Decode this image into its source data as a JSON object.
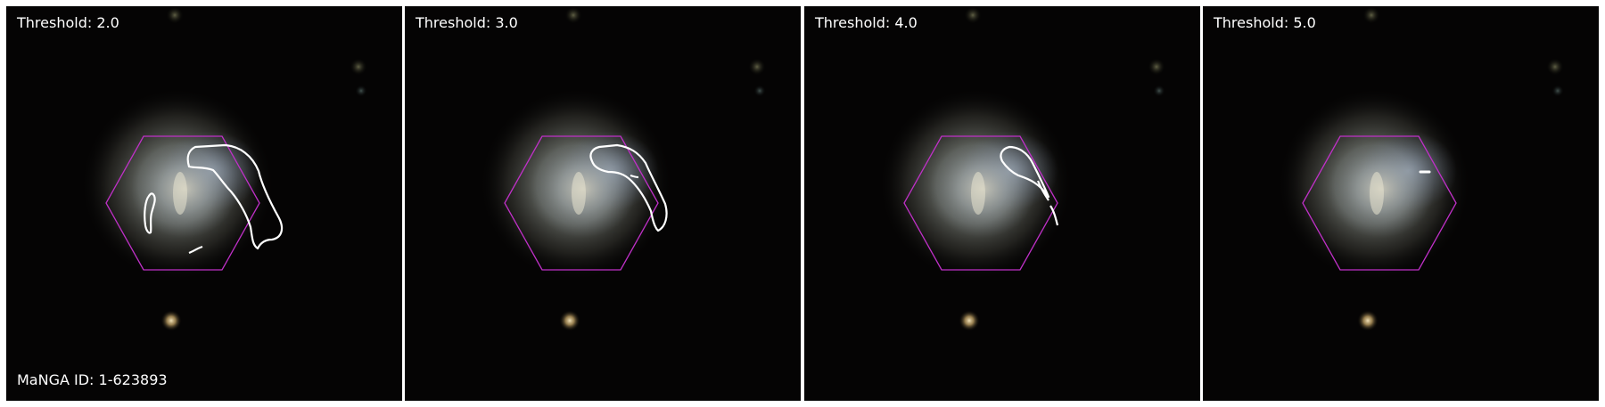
{
  "figure": {
    "manga_id_label": "MaNGA ID: 1-623893",
    "panels": [
      {
        "title": "Threshold: 2.0"
      },
      {
        "title": "Threshold: 3.0"
      },
      {
        "title": "Threshold: 4.0"
      },
      {
        "title": "Threshold: 5.0"
      }
    ]
  },
  "colors": {
    "background": "#000000",
    "hexagon": "#c030c8",
    "contour": "#ffffff",
    "label_text": "#ffffff"
  }
}
